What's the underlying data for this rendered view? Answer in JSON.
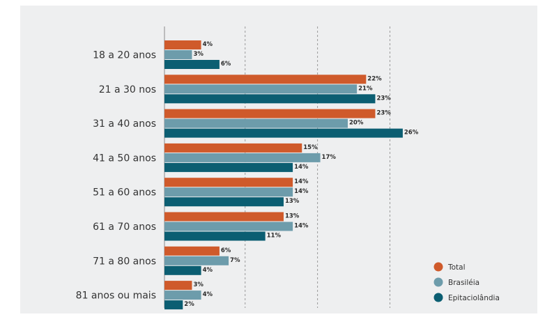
{
  "chart_data": {
    "type": "bar",
    "orientation": "horizontal",
    "categories": [
      "18 a 20 anos",
      "21 a 30 nos",
      "31 a 40 anos",
      "41 a 50 anos",
      "51 a 60 anos",
      "61 a 70 anos",
      "71 a 80 anos",
      "81 anos ou mais"
    ],
    "series": [
      {
        "name": "Total",
        "color": "#cf5a2b",
        "values": [
          4,
          22,
          23,
          15,
          14,
          13,
          6,
          3
        ],
        "labels": [
          "4%",
          "22%",
          "23%",
          "15%",
          "14%",
          "13%",
          "6%",
          "3%"
        ]
      },
      {
        "name": "Brasiléia",
        "color": "#6d9cab",
        "values": [
          3,
          21,
          20,
          17,
          14,
          14,
          7,
          4
        ],
        "labels": [
          "3%",
          "21%",
          "20%",
          "17%",
          "14%",
          "14%",
          "7%",
          "4%"
        ]
      },
      {
        "name": "Epitaciolândia",
        "color": "#0b5e72",
        "values": [
          6,
          23,
          26,
          14,
          13,
          11,
          4,
          2
        ],
        "labels": [
          "6%",
          "23%",
          "26%",
          "14%",
          "13%",
          "11%",
          "4%",
          "2%"
        ]
      }
    ],
    "xlim": [
      0,
      26
    ],
    "grid": true,
    "legend_position": "bottom-right"
  }
}
